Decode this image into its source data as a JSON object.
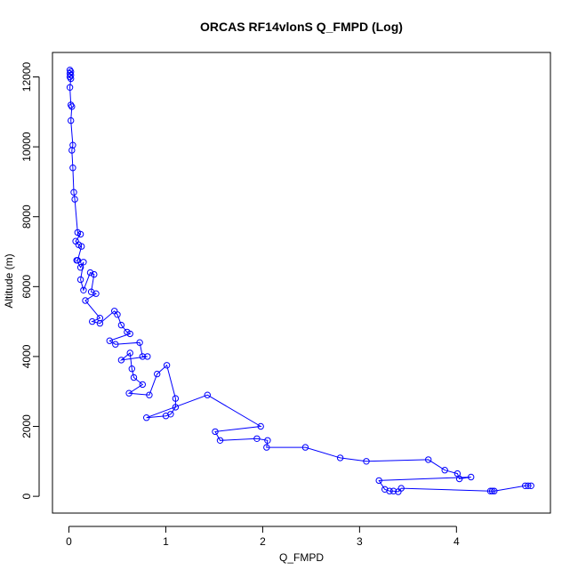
{
  "chart_data": {
    "type": "scatter",
    "title": "ORCAS RF14vlonS Q_FMPD (Log)",
    "xlabel": "Q_FMPD",
    "ylabel": "Altitude (m)",
    "xlim": [
      -0.17,
      4.97
    ],
    "ylim": [
      -480,
      12700
    ],
    "xticks": [
      0,
      1,
      2,
      3,
      4
    ],
    "yticks": [
      0,
      2000,
      4000,
      6000,
      8000,
      10000,
      12000
    ],
    "grid": false,
    "style": {
      "color": "#0000ff",
      "marker": "open-circle",
      "line": true
    },
    "series": [
      {
        "points": [
          [
            0.01,
            12200
          ],
          [
            0.02,
            12150
          ],
          [
            0.01,
            12100
          ],
          [
            0.02,
            12050
          ],
          [
            0.01,
            12000
          ],
          [
            0.02,
            11950
          ],
          [
            0.01,
            11700
          ],
          [
            0.02,
            11200
          ],
          [
            0.03,
            11150
          ],
          [
            0.02,
            10750
          ],
          [
            0.04,
            10050
          ],
          [
            0.03,
            9900
          ],
          [
            0.04,
            9400
          ],
          [
            0.05,
            8700
          ],
          [
            0.06,
            8500
          ],
          [
            0.09,
            7550
          ],
          [
            0.12,
            7500
          ],
          [
            0.07,
            7300
          ],
          [
            0.1,
            7200
          ],
          [
            0.13,
            7150
          ],
          [
            0.09,
            6750
          ],
          [
            0.08,
            6750
          ],
          [
            0.12,
            6550
          ],
          [
            0.15,
            6700
          ],
          [
            0.12,
            6200
          ],
          [
            0.15,
            5900
          ],
          [
            0.22,
            6400
          ],
          [
            0.26,
            6350
          ],
          [
            0.23,
            5850
          ],
          [
            0.28,
            5800
          ],
          [
            0.17,
            5600
          ],
          [
            0.32,
            5100
          ],
          [
            0.24,
            5000
          ],
          [
            0.32,
            4950
          ],
          [
            0.47,
            5300
          ],
          [
            0.5,
            5200
          ],
          [
            0.54,
            4900
          ],
          [
            0.6,
            4700
          ],
          [
            0.63,
            4650
          ],
          [
            0.42,
            4450
          ],
          [
            0.48,
            4350
          ],
          [
            0.73,
            4400
          ],
          [
            0.76,
            4000
          ],
          [
            0.81,
            4000
          ],
          [
            0.54,
            3900
          ],
          [
            0.63,
            4100
          ],
          [
            0.65,
            3650
          ],
          [
            0.67,
            3400
          ],
          [
            0.76,
            3200
          ],
          [
            0.62,
            2950
          ],
          [
            0.83,
            2900
          ],
          [
            0.91,
            3500
          ],
          [
            1.01,
            3750
          ],
          [
            1.1,
            2800
          ],
          [
            1.1,
            2550
          ],
          [
            1.05,
            2350
          ],
          [
            1.0,
            2300
          ],
          [
            0.8,
            2250
          ],
          [
            1.43,
            2900
          ],
          [
            1.98,
            2000
          ],
          [
            1.51,
            1850
          ],
          [
            1.56,
            1600
          ],
          [
            1.94,
            1650
          ],
          [
            2.05,
            1600
          ],
          [
            2.04,
            1400
          ],
          [
            2.44,
            1400
          ],
          [
            2.8,
            1100
          ],
          [
            3.07,
            1000
          ],
          [
            3.71,
            1050
          ],
          [
            3.88,
            750
          ],
          [
            4.01,
            650
          ],
          [
            4.03,
            500
          ],
          [
            4.15,
            550
          ],
          [
            3.2,
            450
          ],
          [
            3.26,
            200
          ],
          [
            3.31,
            150
          ],
          [
            3.35,
            150
          ],
          [
            3.4,
            130
          ],
          [
            3.43,
            230
          ],
          [
            4.35,
            150
          ],
          [
            4.37,
            150
          ],
          [
            4.39,
            150
          ],
          [
            4.71,
            300
          ],
          [
            4.74,
            300
          ],
          [
            4.77,
            300
          ]
        ]
      }
    ]
  }
}
